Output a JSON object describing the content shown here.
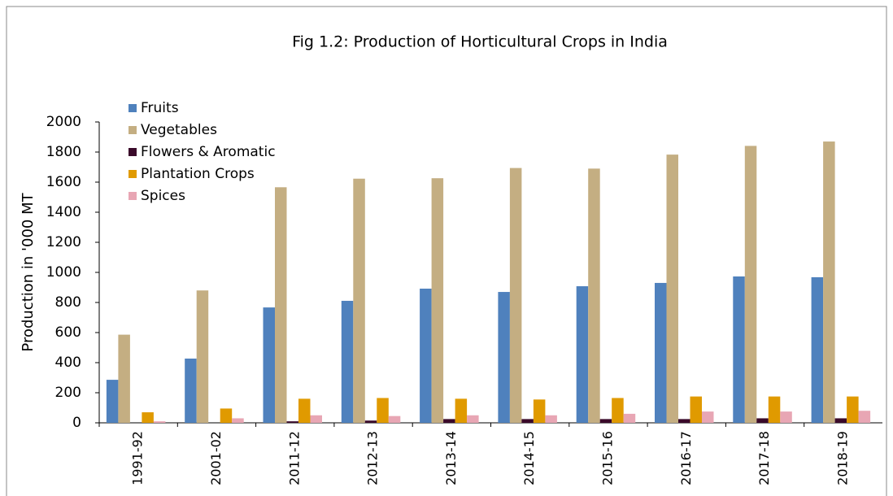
{
  "chart_data": {
    "type": "bar",
    "title": "Fig 1.2: Production of Horticultural Crops in India",
    "y_label": "Production in '000 MT",
    "categories": [
      "1991-92",
      "2001-02",
      "2011-12",
      "2012-13",
      "2013-14",
      "2014-15",
      "2015-16",
      "2016-17",
      "2017-18",
      "2018-19"
    ],
    "series": [
      {
        "name": "Fruits",
        "color": "#4f81bd",
        "values": [
          286,
          427,
          767,
          811,
          892,
          870,
          908,
          930,
          973,
          968
        ]
      },
      {
        "name": "Vegetables",
        "color": "#c4ae82",
        "values": [
          586,
          880,
          1566,
          1623,
          1626,
          1694,
          1690,
          1783,
          1841,
          1870
        ]
      },
      {
        "name": "Flowers & Aromatic",
        "color": "#3a0a2a",
        "values": [
          0,
          0,
          10,
          15,
          25,
          25,
          25,
          25,
          30,
          30
        ]
      },
      {
        "name": "Plantation Crops",
        "color": "#e09a00",
        "values": [
          70,
          95,
          160,
          165,
          160,
          155,
          165,
          175,
          175,
          175
        ]
      },
      {
        "name": "Spices",
        "color": "#e8a6b4",
        "values": [
          10,
          30,
          50,
          45,
          50,
          50,
          60,
          75,
          75,
          80
        ]
      }
    ],
    "ylim": [
      0,
      2000
    ],
    "yticks": [
      0,
      200,
      400,
      600,
      800,
      1000,
      1200,
      1400,
      1600,
      1800,
      2000
    ]
  }
}
